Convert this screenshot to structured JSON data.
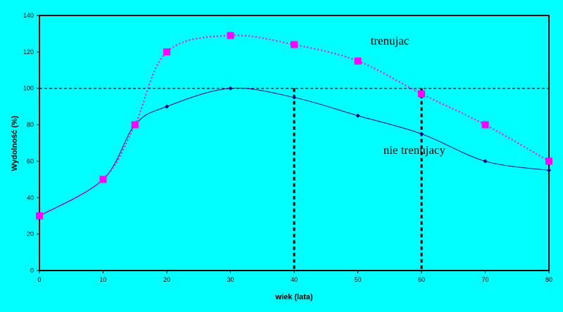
{
  "chart_data": {
    "type": "line",
    "title": "",
    "xlabel": "wiek (lata)",
    "ylabel": "Wydolność (%)",
    "xlim": [
      0,
      80
    ],
    "ylim": [
      0,
      140
    ],
    "x_ticks": [
      0,
      10,
      20,
      30,
      40,
      50,
      60,
      70,
      80
    ],
    "y_ticks": [
      0,
      20,
      40,
      60,
      80,
      100,
      120,
      140
    ],
    "grid": false,
    "reference_line_y": 100,
    "reference_drops_x": [
      40,
      60
    ],
    "series": [
      {
        "name": "trenujac",
        "color": "#FF00FF",
        "line_style": "dotted",
        "marker": "square",
        "x": [
          0,
          10,
          15,
          20,
          30,
          40,
          50,
          60,
          70,
          80
        ],
        "y": [
          30,
          50,
          80,
          120,
          129,
          124,
          115,
          97,
          80,
          60
        ]
      },
      {
        "name": "nie trenujacy",
        "color": "#000080",
        "line_style": "solid",
        "marker": "diamond",
        "x": [
          0,
          10,
          15,
          20,
          30,
          40,
          50,
          60,
          70,
          80
        ],
        "y": [
          30,
          50,
          80,
          90,
          100,
          95,
          85,
          75,
          60,
          55
        ]
      }
    ],
    "annotations": [
      {
        "text": "trenujac",
        "x": 52,
        "y": 124
      },
      {
        "text": "nie trenujacy",
        "x": 54,
        "y": 64
      }
    ]
  }
}
